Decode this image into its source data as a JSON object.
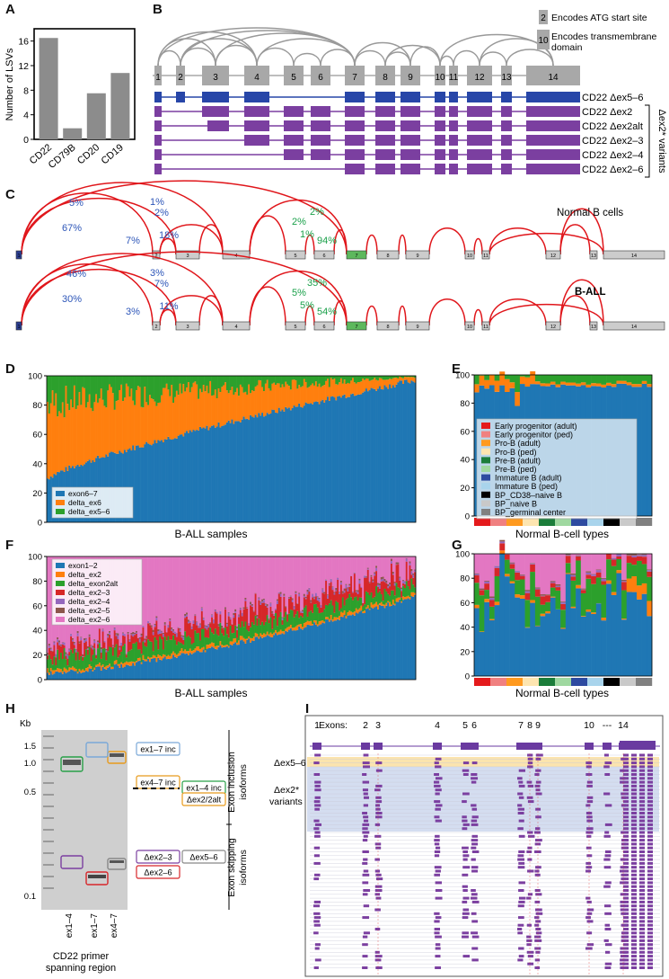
{
  "panels": [
    "A",
    "B",
    "C",
    "D",
    "E",
    "F",
    "G",
    "H",
    "I"
  ],
  "panel_a": {
    "chart_data": {
      "type": "bar",
      "categories": [
        "CD22",
        "CD79B",
        "CD20",
        "CD19"
      ],
      "values": [
        16.5,
        1.8,
        7.5,
        10.8
      ],
      "ylabel": "Number of LSVs",
      "ylim": [
        0,
        18
      ],
      "yticks": [
        "0",
        "4",
        "8",
        "12",
        "16"
      ],
      "bar_color": "#8c8c8c"
    }
  },
  "panel_b": {
    "exons": [
      "1",
      "2",
      "3",
      "4",
      "5",
      "6",
      "7",
      "8",
      "9",
      "10",
      "11",
      "12",
      "13",
      "14"
    ],
    "legend": [
      {
        "num": "2",
        "text": "Encodes ATG start site"
      },
      {
        "num": "10",
        "text": "Encodes transmembrane domain"
      }
    ],
    "isoforms": [
      "CD22 Δex5–6",
      "CD22 Δex2",
      "CD22 Δex2alt",
      "CD22 Δex2–3",
      "CD22 Δex2–4",
      "CD22 Δex2–6"
    ],
    "variant_label": "Δex2* variants",
    "colors": {
      "blue": "#2746a8",
      "purple": "#7b3fa0",
      "gray": "#a8a8a8"
    }
  },
  "panel_c": {
    "normal": {
      "title": "Normal B cells",
      "blue_pcts": [
        "5%",
        "1%",
        "2%",
        "67%",
        "7%",
        "18%"
      ],
      "green_pcts": [
        "2%",
        "2%",
        "1%",
        "94%"
      ]
    },
    "ball": {
      "title": "B-ALL",
      "blue_pcts": [
        "46%",
        "3%",
        "7%",
        "30%",
        "3%",
        "11%"
      ],
      "green_pcts": [
        "35%",
        "5%",
        "5%",
        "54%"
      ]
    },
    "exons": [
      "1",
      "2",
      "3",
      "4",
      "5",
      "6",
      "7",
      "8",
      "9",
      "10",
      "11",
      "12",
      "13",
      "14"
    ],
    "arc_color": "#e0161b"
  },
  "panel_d": {
    "chart_data": {
      "type": "area",
      "xlabel": "B-ALL samples",
      "ylim": [
        0,
        100
      ],
      "yticks": [
        "0",
        "20",
        "40",
        "60",
        "80",
        "100"
      ],
      "series": [
        {
          "name": "exon6–7",
          "color": "#1f77b4",
          "start": 30,
          "end": 97
        },
        {
          "name": "delta_ex6",
          "color": "#ff7f0e",
          "start": 64,
          "end": 2
        },
        {
          "name": "delta_ex5–6",
          "color": "#2ca02c",
          "start": 6,
          "end": 1
        }
      ]
    }
  },
  "panel_e": {
    "chart_data": {
      "type": "bar",
      "xlabel": "Normal B-cell types",
      "ylim": [
        0,
        100
      ],
      "yticks": [
        "0",
        "20",
        "40",
        "60",
        "80",
        "100"
      ],
      "blue_level": 92,
      "legend": [
        {
          "name": "Early progenitor (adult)",
          "color": "#e41a1c"
        },
        {
          "name": "Early progenitor (ped)",
          "color": "#f08080"
        },
        {
          "name": "Pro-B (adult)",
          "color": "#ff9a1f"
        },
        {
          "name": "Pro-B (ped)",
          "color": "#fde5b0"
        },
        {
          "name": "Pre-B (adult)",
          "color": "#1b7d3a"
        },
        {
          "name": "Pre-B (ped)",
          "color": "#9fd8a0"
        },
        {
          "name": "Immature B (adult)",
          "color": "#2d4aa0"
        },
        {
          "name": "Immature B (ped)",
          "color": "#a9d4ec"
        },
        {
          "name": "BP_CD38–naive B",
          "color": "#000000"
        },
        {
          "name": "BP_naive B",
          "color": "#c9c9c9"
        },
        {
          "name": "BP_germinal center",
          "color": "#808080"
        }
      ]
    }
  },
  "panel_f": {
    "chart_data": {
      "type": "area",
      "xlabel": "B-ALL samples",
      "ylim": [
        0,
        100
      ],
      "yticks": [
        "0",
        "20",
        "40",
        "60",
        "80",
        "100"
      ],
      "series": [
        {
          "name": "exon1–2",
          "color": "#1f77b4"
        },
        {
          "name": "delta_ex2",
          "color": "#ff7f0e"
        },
        {
          "name": "delta_exon2alt",
          "color": "#2ca02c"
        },
        {
          "name": "delta_ex2–3",
          "color": "#d62728"
        },
        {
          "name": "delta_ex2–4",
          "color": "#9467bd"
        },
        {
          "name": "delta_ex2–5",
          "color": "#8c564b"
        },
        {
          "name": "delta_ex2–6",
          "color": "#e377c2"
        }
      ]
    }
  },
  "panel_g": {
    "chart_data": {
      "type": "bar",
      "xlabel": "Normal B-cell types",
      "ylim": [
        0,
        100
      ],
      "yticks": [
        "0",
        "20",
        "40",
        "60",
        "80",
        "100"
      ]
    }
  },
  "panel_h": {
    "kb_label": "Kb",
    "kb_ticks": [
      "1.5",
      "1.0",
      "0.5",
      "0.1"
    ],
    "lanes": [
      "ex1–4",
      "ex1–7",
      "ex4–7"
    ],
    "xlabel": "CD22 primer spanning region",
    "band_labels": [
      "ex1–7 inc",
      "ex4–7 inc",
      "ex1–4 inc",
      "Δex2/2alt",
      "Δex2–3",
      "Δex5–6",
      "Δex2–6"
    ],
    "group_labels": [
      "Exon inclusion isoforms",
      "Exon skipping isoforms"
    ]
  },
  "panel_i": {
    "exons_label": "Exons:",
    "exon_numbers": [
      "1",
      "2",
      "3",
      "4",
      "5",
      "6",
      "7",
      "8",
      "9",
      "10",
      "---",
      "14"
    ],
    "row_labels": [
      "Δex5–6",
      "Δex2* variants"
    ]
  }
}
